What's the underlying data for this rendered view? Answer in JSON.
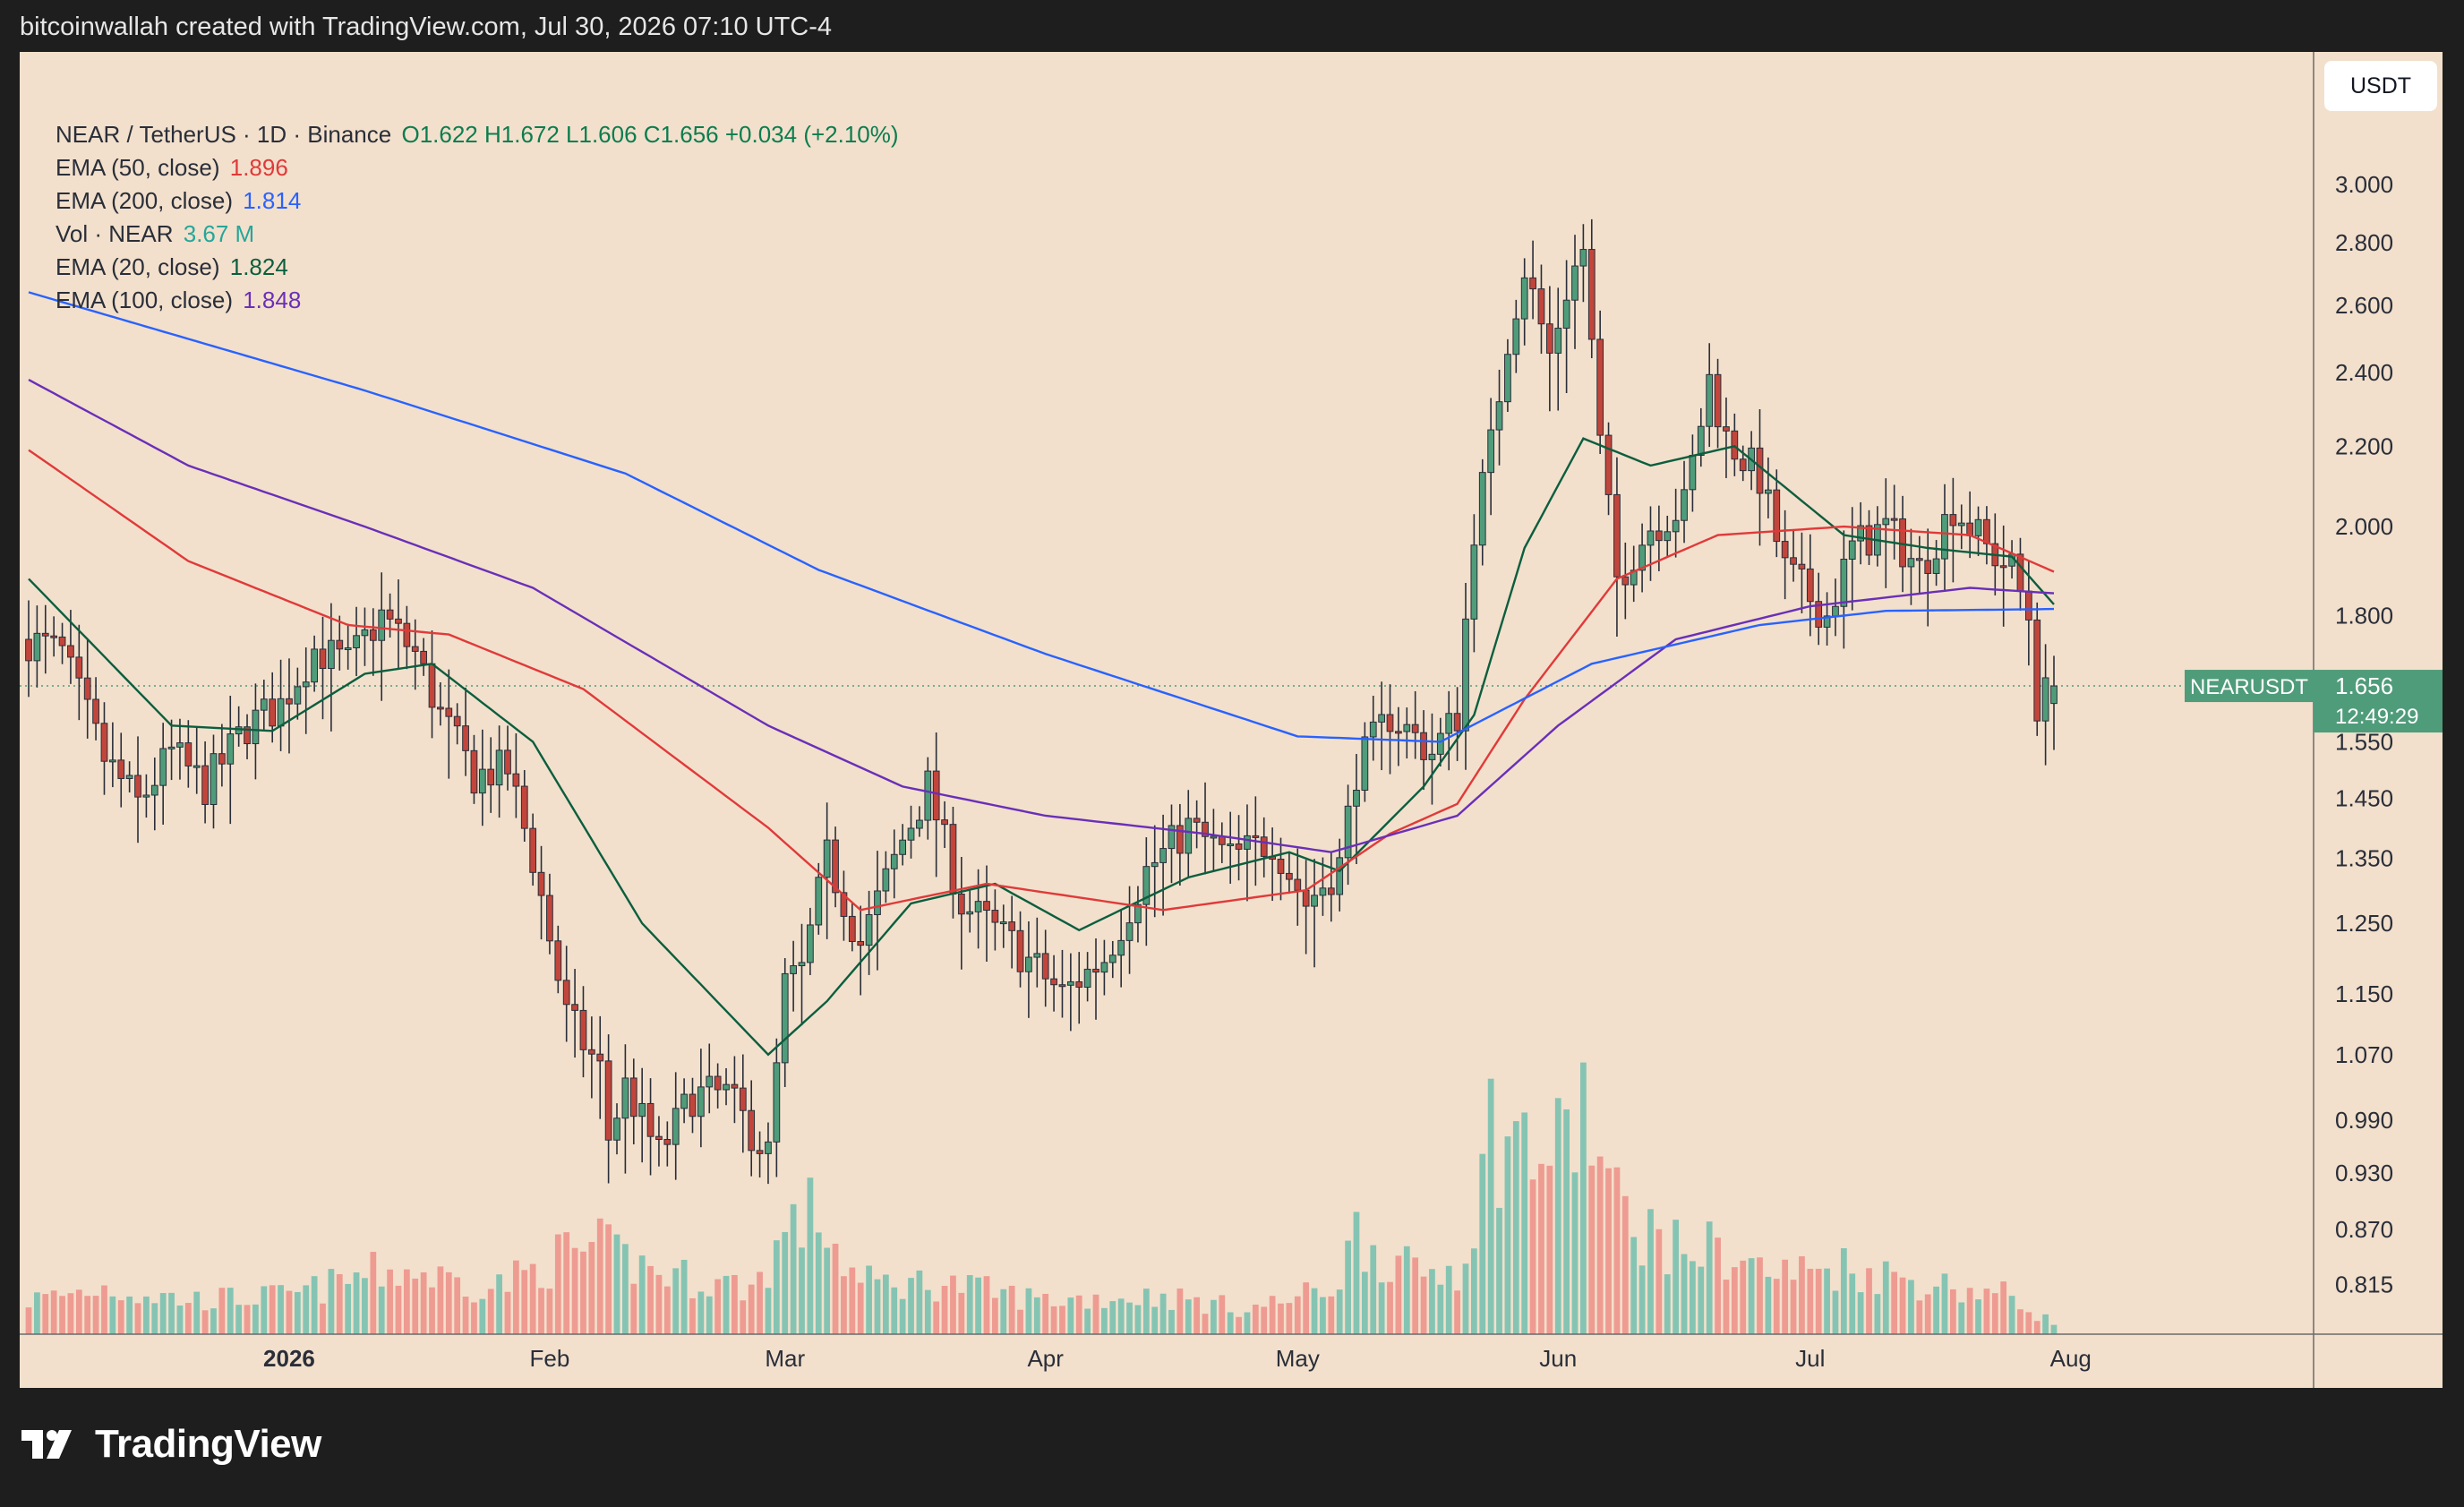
{
  "caption": "bitcoinwallah created with TradingView.com, Jul 30, 2026 07:10 UTC-4",
  "legend": {
    "symbol": "NEAR / TetherUS · 1D · Binance",
    "ohlc": "O1.622  H1.672  L1.606  C1.656  +0.034 (+2.10%)",
    "rows": [
      {
        "label": "EMA (50, close)",
        "value": "1.896",
        "color": "#e03a3a"
      },
      {
        "label": "EMA (200, close)",
        "value": "1.814",
        "color": "#2962ff"
      },
      {
        "label": "Vol · NEAR",
        "value": "3.67 M",
        "color": "#26a69a"
      },
      {
        "label": "EMA (20, close)",
        "value": "1.824",
        "color": "#0b5e3e"
      },
      {
        "label": "EMA (100, close)",
        "value": "1.848",
        "color": "#6a2fb8"
      }
    ]
  },
  "currency_button": "USDT",
  "price_tag": {
    "symbol": "NEARUSDT",
    "price": "1.656",
    "countdown": "12:49:29"
  },
  "brand": {
    "name": "TradingView"
  },
  "colors": {
    "up": "#4f9c7a",
    "down": "#c2453c",
    "vol_up": "#85c4b3",
    "vol_down": "#ee9b92",
    "tag": "#4f9c7a"
  },
  "chart_data": {
    "type": "candlestick",
    "title": "NEAR / TetherUS · 1D · Binance",
    "y_scale": "log",
    "ylim": [
      0.77,
      3.3
    ],
    "y_ticks": [
      "3.000",
      "2.800",
      "2.600",
      "2.400",
      "2.200",
      "2.000",
      "1.800",
      "1.656",
      "1.550",
      "1.450",
      "1.350",
      "1.250",
      "1.150",
      "1.070",
      "0.990",
      "0.930",
      "0.870",
      "0.815"
    ],
    "x_ticks": [
      "2026",
      "Feb",
      "Mar",
      "Apr",
      "May",
      "Jun",
      "Jul",
      "Aug"
    ],
    "x_tick_dates": [
      "2026-01-01",
      "2026-02-01",
      "2026-03-01",
      "2026-04-01",
      "2026-05-01",
      "2026-06-01",
      "2026-07-01",
      "2026-08-01"
    ],
    "start_date": "2025-12-01",
    "end_date": "2026-07-30",
    "close_anchors": [
      [
        "2025-12-01",
        1.75
      ],
      [
        "2025-12-05",
        1.72
      ],
      [
        "2025-12-10",
        1.52
      ],
      [
        "2025-12-14",
        1.44
      ],
      [
        "2025-12-18",
        1.53
      ],
      [
        "2025-12-22",
        1.47
      ],
      [
        "2025-12-27",
        1.58
      ],
      [
        "2025-12-31",
        1.62
      ],
      [
        "2026-01-04",
        1.73
      ],
      [
        "2026-01-08",
        1.7
      ],
      [
        "2026-01-12",
        1.8
      ],
      [
        "2026-01-16",
        1.72
      ],
      [
        "2026-01-19",
        1.6
      ],
      [
        "2026-01-23",
        1.49
      ],
      [
        "2026-01-27",
        1.5
      ],
      [
        "2026-01-30",
        1.35
      ],
      [
        "2026-02-03",
        1.12
      ],
      [
        "2026-02-07",
        1.05
      ],
      [
        "2026-02-08",
        0.97
      ],
      [
        "2026-02-10",
        1.03
      ],
      [
        "2026-02-14",
        0.95
      ],
      [
        "2026-02-18",
        1.02
      ],
      [
        "2026-02-22",
        1.02
      ],
      [
        "2026-02-27",
        0.95
      ],
      [
        "2026-03-01",
        1.16
      ],
      [
        "2026-03-03",
        1.18
      ],
      [
        "2026-03-06",
        1.35
      ],
      [
        "2026-03-10",
        1.22
      ],
      [
        "2026-03-15",
        1.38
      ],
      [
        "2026-03-18",
        1.47
      ],
      [
        "2026-03-22",
        1.28
      ],
      [
        "2026-03-28",
        1.22
      ],
      [
        "2026-04-03",
        1.15
      ],
      [
        "2026-04-08",
        1.2
      ],
      [
        "2026-04-13",
        1.33
      ],
      [
        "2026-04-18",
        1.4
      ],
      [
        "2026-04-23",
        1.35
      ],
      [
        "2026-04-28",
        1.38
      ],
      [
        "2026-05-02",
        1.28
      ],
      [
        "2026-05-06",
        1.34
      ],
      [
        "2026-05-08",
        1.5
      ],
      [
        "2026-05-12",
        1.6
      ],
      [
        "2026-05-17",
        1.53
      ],
      [
        "2026-05-20",
        1.6
      ],
      [
        "2026-05-22",
        2.0
      ],
      [
        "2026-05-24",
        2.2
      ],
      [
        "2026-05-26",
        2.5
      ],
      [
        "2026-05-28",
        2.72
      ],
      [
        "2026-05-31",
        2.45
      ],
      [
        "2026-06-02",
        2.65
      ],
      [
        "2026-06-04",
        2.78
      ],
      [
        "2026-06-06",
        2.2
      ],
      [
        "2026-06-08",
        1.88
      ],
      [
        "2026-06-12",
        2.0
      ],
      [
        "2026-06-16",
        2.05
      ],
      [
        "2026-06-19",
        2.38
      ],
      [
        "2026-06-21",
        2.22
      ],
      [
        "2026-06-25",
        2.12
      ],
      [
        "2026-06-28",
        1.9
      ],
      [
        "2026-07-03",
        1.8
      ],
      [
        "2026-07-06",
        1.95
      ],
      [
        "2026-07-10",
        2.0
      ],
      [
        "2026-07-14",
        1.9
      ],
      [
        "2026-07-18",
        2.05
      ],
      [
        "2026-07-22",
        1.95
      ],
      [
        "2026-07-25",
        1.9
      ],
      [
        "2026-07-27",
        1.8
      ],
      [
        "2026-07-28",
        1.62
      ],
      [
        "2026-07-30",
        1.656
      ]
    ],
    "series": [
      {
        "name": "EMA (20, close)",
        "color": "#0b5e3e",
        "anchors": [
          [
            "2025-12-01",
            1.88
          ],
          [
            "2025-12-18",
            1.58
          ],
          [
            "2025-12-30",
            1.57
          ],
          [
            "2026-01-10",
            1.68
          ],
          [
            "2026-01-18",
            1.7
          ],
          [
            "2026-01-30",
            1.55
          ],
          [
            "2026-02-12",
            1.25
          ],
          [
            "2026-02-27",
            1.07
          ],
          [
            "2026-03-06",
            1.14
          ],
          [
            "2026-03-16",
            1.28
          ],
          [
            "2026-03-26",
            1.31
          ],
          [
            "2026-04-05",
            1.24
          ],
          [
            "2026-04-18",
            1.32
          ],
          [
            "2026-04-30",
            1.36
          ],
          [
            "2026-05-06",
            1.33
          ],
          [
            "2026-05-16",
            1.47
          ],
          [
            "2026-05-22",
            1.6
          ],
          [
            "2026-05-28",
            1.95
          ],
          [
            "2026-06-04",
            2.22
          ],
          [
            "2026-06-12",
            2.15
          ],
          [
            "2026-06-22",
            2.2
          ],
          [
            "2026-07-05",
            1.98
          ],
          [
            "2026-07-15",
            1.95
          ],
          [
            "2026-07-25",
            1.93
          ],
          [
            "2026-07-30",
            1.824
          ]
        ]
      },
      {
        "name": "EMA (50, close)",
        "color": "#e03a3a",
        "anchors": [
          [
            "2025-12-01",
            2.19
          ],
          [
            "2025-12-20",
            1.92
          ],
          [
            "2026-01-08",
            1.78
          ],
          [
            "2026-01-20",
            1.76
          ],
          [
            "2026-02-05",
            1.65
          ],
          [
            "2026-02-27",
            1.4
          ],
          [
            "2026-03-10",
            1.27
          ],
          [
            "2026-03-25",
            1.31
          ],
          [
            "2026-04-15",
            1.27
          ],
          [
            "2026-05-02",
            1.3
          ],
          [
            "2026-05-12",
            1.39
          ],
          [
            "2026-05-20",
            1.44
          ],
          [
            "2026-05-28",
            1.63
          ],
          [
            "2026-06-08",
            1.88
          ],
          [
            "2026-06-20",
            1.98
          ],
          [
            "2026-07-05",
            2.0
          ],
          [
            "2026-07-20",
            1.98
          ],
          [
            "2026-07-30",
            1.896
          ]
        ]
      },
      {
        "name": "EMA (100, close)",
        "color": "#6a2fb8",
        "anchors": [
          [
            "2025-12-01",
            2.38
          ],
          [
            "2025-12-20",
            2.15
          ],
          [
            "2026-01-10",
            2.0
          ],
          [
            "2026-01-30",
            1.86
          ],
          [
            "2026-02-27",
            1.58
          ],
          [
            "2026-03-15",
            1.47
          ],
          [
            "2026-04-01",
            1.42
          ],
          [
            "2026-04-20",
            1.39
          ],
          [
            "2026-05-05",
            1.36
          ],
          [
            "2026-05-20",
            1.42
          ],
          [
            "2026-06-01",
            1.58
          ],
          [
            "2026-06-15",
            1.75
          ],
          [
            "2026-07-01",
            1.82
          ],
          [
            "2026-07-20",
            1.86
          ],
          [
            "2026-07-30",
            1.848
          ]
        ]
      },
      {
        "name": "EMA (200, close)",
        "color": "#2962ff",
        "anchors": [
          [
            "2025-12-01",
            2.64
          ],
          [
            "2026-01-10",
            2.35
          ],
          [
            "2026-02-10",
            2.13
          ],
          [
            "2026-03-05",
            1.9
          ],
          [
            "2026-04-01",
            1.72
          ],
          [
            "2026-05-01",
            1.56
          ],
          [
            "2026-05-18",
            1.55
          ],
          [
            "2026-06-05",
            1.7
          ],
          [
            "2026-06-25",
            1.78
          ],
          [
            "2026-07-10",
            1.81
          ],
          [
            "2026-07-30",
            1.814
          ]
        ]
      }
    ],
    "volume_anchors": [
      [
        "2025-12-01",
        40
      ],
      [
        "2025-12-10",
        55
      ],
      [
        "2025-12-20",
        40
      ],
      [
        "2026-01-01",
        45
      ],
      [
        "2026-01-10",
        70
      ],
      [
        "2026-01-15",
        75
      ],
      [
        "2026-01-25",
        55
      ],
      [
        "2026-02-03",
        95
      ],
      [
        "2026-02-07",
        100
      ],
      [
        "2026-02-15",
        70
      ],
      [
        "2026-02-25",
        55
      ],
      [
        "2026-03-01",
        120
      ],
      [
        "2026-03-05",
        145
      ],
      [
        "2026-03-10",
        60
      ],
      [
        "2026-03-20",
        60
      ],
      [
        "2026-04-01",
        40
      ],
      [
        "2026-04-15",
        45
      ],
      [
        "2026-04-25",
        30
      ],
      [
        "2026-05-05",
        55
      ],
      [
        "2026-05-08",
        120
      ],
      [
        "2026-05-15",
        70
      ],
      [
        "2026-05-20",
        80
      ],
      [
        "2026-05-24",
        240
      ],
      [
        "2026-05-28",
        220
      ],
      [
        "2026-06-01",
        210
      ],
      [
        "2026-06-04",
        270
      ],
      [
        "2026-06-08",
        150
      ],
      [
        "2026-06-15",
        100
      ],
      [
        "2026-06-20",
        100
      ],
      [
        "2026-06-27",
        70
      ],
      [
        "2026-07-05",
        80
      ],
      [
        "2026-07-15",
        60
      ],
      [
        "2026-07-25",
        45
      ],
      [
        "2026-07-30",
        15
      ]
    ]
  }
}
